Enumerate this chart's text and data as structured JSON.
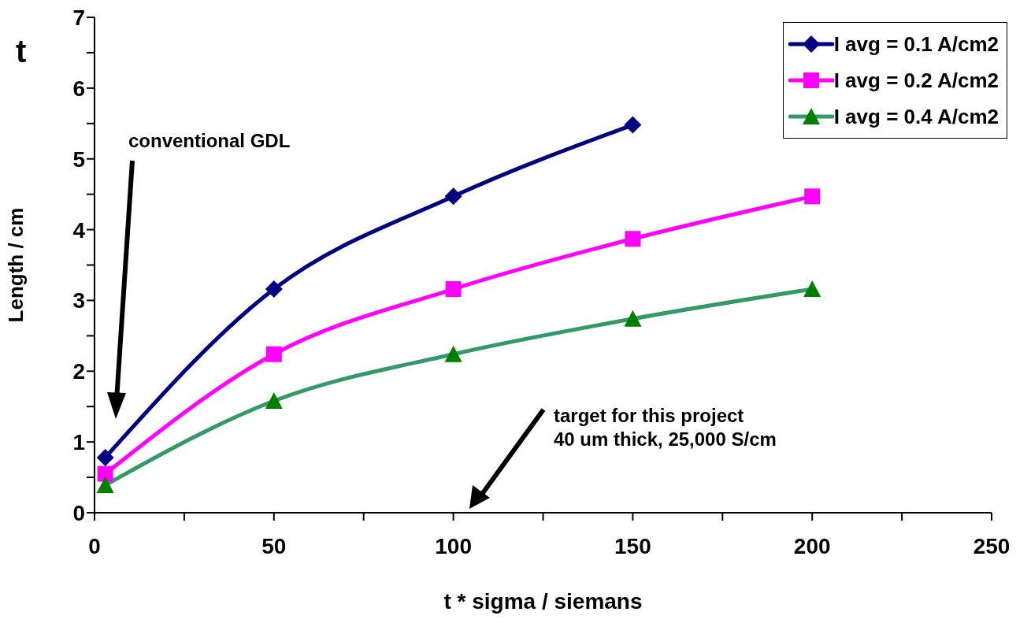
{
  "chart_data": {
    "type": "line",
    "xlabel": "t * sigma / siemans",
    "ylabel": "Length / cm",
    "x": [
      3,
      50,
      100,
      150,
      200
    ],
    "series": [
      {
        "name": "I avg = 0.1 A/cm2",
        "color": "#000080",
        "marker": "diamond",
        "values": [
          0.78,
          3.16,
          4.47,
          5.48,
          null
        ]
      },
      {
        "name": "I avg = 0.2 A/cm2",
        "color": "#ff00ff",
        "marker": "square",
        "values": [
          0.55,
          2.24,
          3.16,
          3.87,
          4.47
        ]
      },
      {
        "name": "I avg = 0.4 A/cm2",
        "color": "#339966",
        "marker": "triangle",
        "values": [
          0.39,
          1.58,
          2.24,
          2.74,
          3.16
        ]
      }
    ],
    "xlim": [
      0,
      250
    ],
    "xticks": [
      0,
      {
        "value": 25,
        "label": null
      },
      50,
      {
        "value": 75,
        "label": null
      },
      100,
      {
        "value": 125,
        "label": null
      },
      150,
      {
        "value": 175,
        "label": null
      },
      200,
      {
        "value": 225,
        "label": null
      },
      250
    ],
    "ylim": [
      0,
      7
    ],
    "yticks": [
      0,
      {
        "value": 0.5,
        "label": null
      },
      1,
      {
        "value": 1.5,
        "label": null
      },
      2,
      {
        "value": 2.5,
        "label": null
      },
      3,
      {
        "value": 3.5,
        "label": null
      },
      4,
      {
        "value": 4.5,
        "label": null
      },
      5,
      {
        "value": 5.5,
        "label": null
      },
      6,
      {
        "value": 6.5,
        "label": null
      },
      7
    ],
    "grid": false,
    "legend": "top right",
    "line_style": "solid",
    "annotations": [
      "t",
      "conventional GDL",
      "target for this project\n40 um thick, 25,000 S/cm"
    ]
  }
}
